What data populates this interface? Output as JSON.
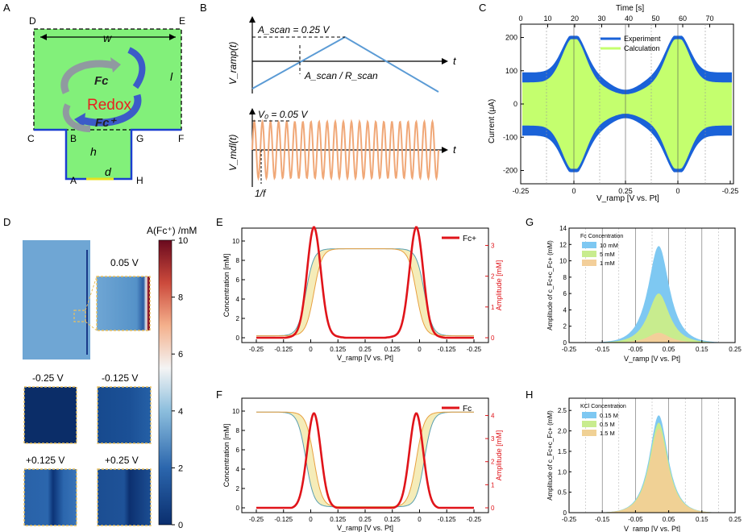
{
  "panels": {
    "A": "A",
    "B": "B",
    "C": "C",
    "D": "D",
    "E": "E",
    "F": "F",
    "G": "G",
    "H": "H"
  },
  "panel_a": {
    "corners": {
      "D": "D",
      "E": "E",
      "C": "C",
      "F": "F",
      "B": "B",
      "G": "G",
      "A": "A",
      "H": "H"
    },
    "w": "w",
    "l": "l",
    "h": "h",
    "d": "d",
    "fc": "Fc",
    "redox": "Redox",
    "fcplus": "Fc⁺"
  },
  "panel_b": {
    "vramp": "V_ramp(t)",
    "vmdl": "V_mdl(t)",
    "t": "t",
    "ascan": "A_scan = 0.25 V",
    "ascan_over": "A_scan / R_scan",
    "v0": "V₀ = 0.05 V",
    "period": "1/f"
  },
  "panel_d": {
    "colorbar_title": "A(Fc⁺) /mM",
    "colorbar_ticks": [
      "10",
      "8",
      "6",
      "4",
      "2",
      "0"
    ],
    "label_005": "0.05 V",
    "label_n025": "-0.25 V",
    "label_n0125": "-0.125 V",
    "label_p0125": "+0.125 V",
    "label_p025": "+0.25 V"
  },
  "chart_data": [
    {
      "id": "C",
      "type": "line",
      "title": "Time [s]",
      "top_ticks": [
        "0",
        "10",
        "20",
        "30",
        "40",
        "50",
        "60",
        "70"
      ],
      "bottom_ticks": [
        "-0.25",
        "0",
        "0.25",
        "0",
        "-0.25"
      ],
      "yticks": [
        "200",
        "100",
        "0",
        "-100",
        "-200"
      ],
      "ylabel": "Current (μA)",
      "xlabel": "V_ramp [V vs. Pt]",
      "ylim": [
        -240,
        240
      ],
      "series": [
        {
          "name": "Experiment",
          "color": "#1a62d8",
          "envelope_peak_uA": 205,
          "envelope_baseline_uA": 95
        },
        {
          "name": "Calculation",
          "color": "#c4ff6e",
          "envelope_peak_uA": 195,
          "envelope_baseline_uA": 65
        }
      ]
    },
    {
      "id": "E",
      "type": "line",
      "legend": "Fc+",
      "xlabel": "V_ramp [V vs. Pt]",
      "ylabel": "Concentration [mM]",
      "y2label": "Amplitude [mM]",
      "xticks": [
        "-0.25",
        "-0.125",
        "0",
        "0.125",
        "0.25",
        "0.125",
        "0",
        "-0.125",
        "-0.25"
      ],
      "yticks": [
        "0",
        "2",
        "4",
        "6",
        "8",
        "10"
      ],
      "y2ticks": [
        "0",
        "1",
        "2",
        "3"
      ],
      "concentration_low_mM": 0.2,
      "concentration_high_mM": 9.2,
      "amplitude_peaks_mM": [
        3.45,
        3.45
      ],
      "amplitude_min_mM": 0.1
    },
    {
      "id": "F",
      "type": "line",
      "legend": "Fc",
      "xlabel": "V_ramp [V vs. Pt]",
      "ylabel": "Concentration [mM]",
      "y2label": "Amplitude [mM]",
      "xticks": [
        "-0.25",
        "-0.125",
        "0",
        "0.125",
        "0.25",
        "0.125",
        "0",
        "-0.125",
        "-0.25"
      ],
      "yticks": [
        "0",
        "2",
        "4",
        "6",
        "8",
        "10"
      ],
      "y2ticks": [
        "0",
        "1",
        "2",
        "3",
        "4"
      ],
      "concentration_low_mM": 0.1,
      "concentration_high_mM": 9.9,
      "amplitude_peaks_mM": [
        3.95,
        3.95
      ],
      "amplitude_min_mM": 0.05
    },
    {
      "id": "G",
      "type": "area",
      "legend_title": "Fc Concentration",
      "xlabel": "V_ramp [V vs. Pt]",
      "ylabel": "Amplitude of c_Fc+c_Fc+ (mM)",
      "xticks": [
        "-0.25",
        "-0.15",
        "-0.05",
        "0.05",
        "0.15",
        "0.25"
      ],
      "yticks": [
        "0",
        "2",
        "4",
        "6",
        "8",
        "10",
        "12",
        "14"
      ],
      "ylim": [
        0,
        14
      ],
      "series": [
        {
          "name": "10 mM",
          "color": "#7ec8f2",
          "peak": 11.8,
          "center": 0.02
        },
        {
          "name": "5 mM",
          "color": "#c8ec8e",
          "peak": 6.0,
          "center": 0.02
        },
        {
          "name": "1 mM",
          "color": "#f3cf9a",
          "peak": 1.2,
          "center": 0.02
        }
      ]
    },
    {
      "id": "H",
      "type": "area",
      "legend_title": "KCl Concentration",
      "xlabel": "V_ramp [V vs. Pt]",
      "ylabel": "Amplitude of c_Fc+c_Fc+ (mM)",
      "xticks": [
        "-0.25",
        "-0.15",
        "-0.05",
        "0.05",
        "0.15",
        "0.25"
      ],
      "yticks": [
        "0",
        "0.5",
        "1.0",
        "1.5",
        "2.0",
        "2.5"
      ],
      "ylim": [
        0,
        2.8
      ],
      "series": [
        {
          "name": "0.15 M",
          "color": "#7ec8f2",
          "peak": 2.38,
          "center": 0.02
        },
        {
          "name": "0.5 M",
          "color": "#c8ec8e",
          "peak": 2.2,
          "center": 0.02
        },
        {
          "name": "1.5 M",
          "color": "#f0d195",
          "peak": 2.05,
          "center": 0.02
        }
      ]
    }
  ]
}
